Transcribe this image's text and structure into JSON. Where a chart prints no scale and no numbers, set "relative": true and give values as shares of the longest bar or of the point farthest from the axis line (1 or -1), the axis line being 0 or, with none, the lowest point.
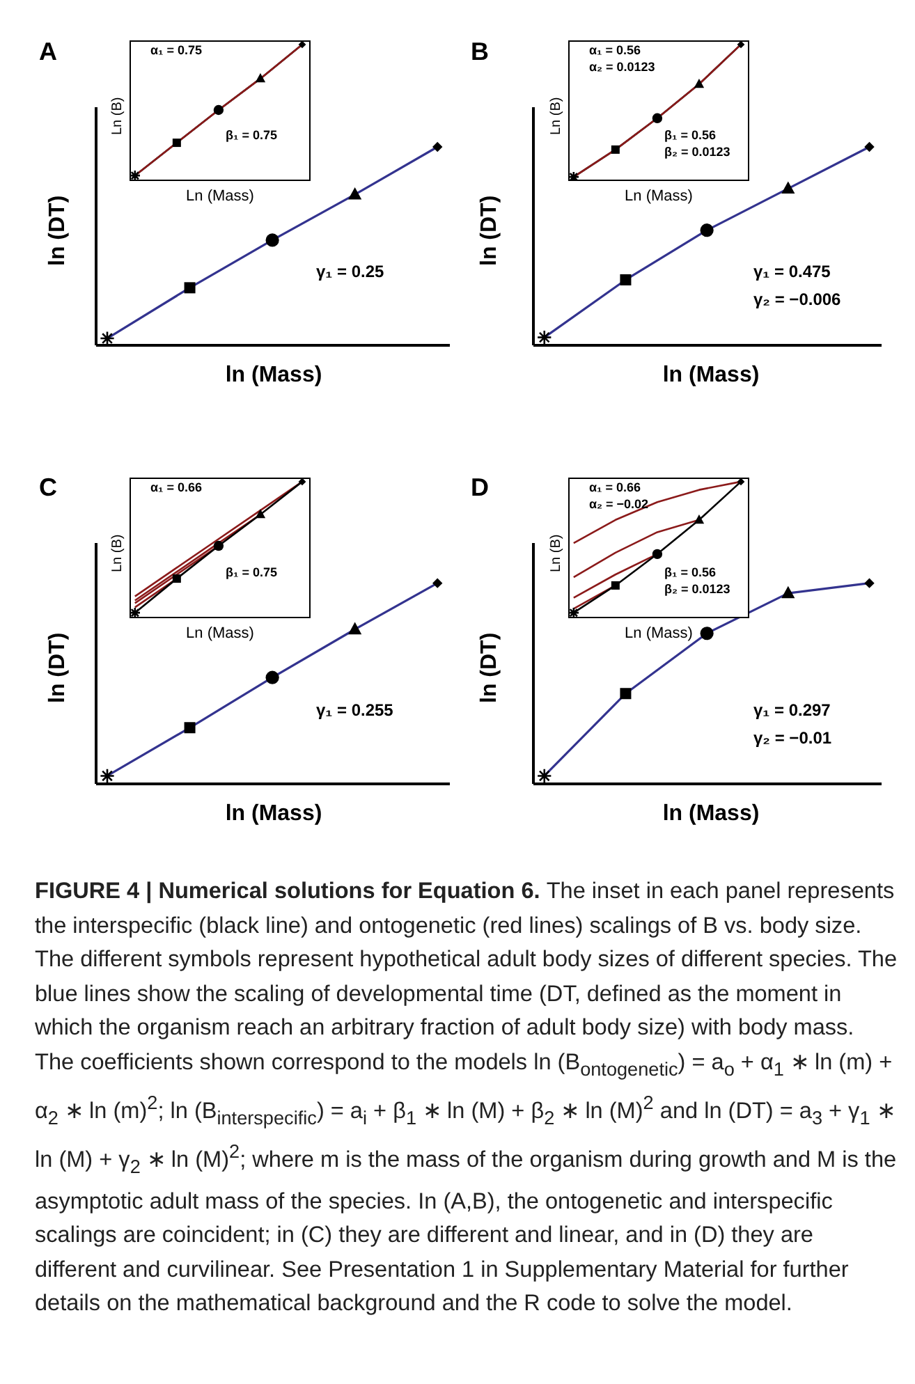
{
  "chart_data": [
    {
      "type": "line",
      "title": "A",
      "xlabel": "ln (Mass)",
      "ylabel": "ln (DT)",
      "categories": [
        null,
        null,
        null,
        null,
        null
      ],
      "relative": true,
      "series": [
        {
          "color": "#33338f",
          "marker": [
            "star",
            "square",
            "circle",
            "triangle",
            "diamond"
          ],
          "values": [
            0.035,
            0.29,
            0.53,
            0.76,
            1
          ]
        }
      ],
      "annotations": [
        "γ₁ = 0.25",
        "FIGURE 4 | Numerical solutions for Equation 6.",
        "The inset in each panel represents the interspecific (black line) and ontogenetic (red lines) scalings of B vs. body size. The different symbols represent hypothetical adult body sizes of different species. The blue lines show the scaling of developmental time (DT, defined as the moment in which the organism reach an arbitrary fraction of adult body size) with body mass. The coefficients shown correspond to the models ln (B$_{ontogenetic}$) = a$_{o}$ + α$_{1}$ ∗ ln (m) + α$_{2}$ ∗ ln (m)$^{2}$; ln (B$_{interspecific}$) = a$_{i}$ + β$_{1}$ ∗ ln (M) + β$_{2}$ ∗ ln (M)$^{2}$ and ln (DT) = a$_{3}$ + γ$_{1}$ ∗ ln (M) + γ$_{2}$ ∗ ln (M)$^{2}$; where m is the mass of the organism during growth and M is the asymptotic adult mass of the species. In (A,B), the ontogenetic and interspecific scalings are coincident; in (C) they are different and linear, and in (D) they are different and curvilinear. See Presentation 1 in Supplementary Material for further details on the mathematical background and the R code to solve the model."
      ]
    },
    {
      "type": "line",
      "xlabel": "Ln (Mass)",
      "ylabel": "Ln (B)",
      "categories": [
        null,
        null,
        null,
        null,
        null
      ],
      "relative": true,
      "series": [
        {
          "color": "#000000",
          "marker": [
            "star",
            "square",
            "circle",
            "triangle",
            "diamond"
          ],
          "values": [
            0.04,
            0.28,
            0.52,
            0.75,
            1
          ]
        },
        {
          "color": "#8b1a1a",
          "values": [
            0.04,
            0.28,
            0.52,
            0.75,
            1
          ]
        }
      ],
      "annotations": [
        "α₁ = 0.75",
        "β₁ = 0.75"
      ]
    },
    {
      "type": "line",
      "title": "B",
      "xlabel": "ln (Mass)",
      "ylabel": "ln (DT)",
      "categories": [
        null,
        null,
        null,
        null,
        null
      ],
      "relative": true,
      "series": [
        {
          "color": "#33338f",
          "marker": [
            "star",
            "square",
            "circle",
            "triangle",
            "diamond"
          ],
          "values": [
            0.04,
            0.33,
            0.58,
            0.79,
            1
          ]
        }
      ],
      "annotations": [
        "γ₁ = 0.475\nγ₂ = −0.006"
      ]
    },
    {
      "type": "line",
      "xlabel": "Ln (Mass)",
      "ylabel": "Ln (B)",
      "categories": [
        null,
        null,
        null,
        null,
        null
      ],
      "relative": true,
      "series": [
        {
          "color": "#000000",
          "marker": [
            "star",
            "square",
            "circle",
            "triangle",
            "diamond"
          ],
          "values": [
            0.03,
            0.23,
            0.46,
            0.71,
            1
          ]
        },
        {
          "color": "#8b1a1a",
          "values": [
            0.03,
            0.23,
            0.46,
            0.71,
            1
          ]
        }
      ],
      "annotations": [
        "α₁ = 0.56\nα₂ = 0.0123",
        "β₁ = 0.56\nβ₂ = 0.0123"
      ]
    },
    {
      "type": "line",
      "title": "C",
      "xlabel": "ln (Mass)",
      "ylabel": "ln (DT)",
      "categories": [
        null,
        null,
        null,
        null,
        null
      ],
      "relative": true,
      "series": [
        {
          "color": "#33338f",
          "marker": [
            "star",
            "square",
            "circle",
            "triangle",
            "diamond"
          ],
          "values": [
            0.04,
            0.28,
            0.53,
            0.77,
            1
          ]
        }
      ],
      "annotations": [
        "γ₁ = 0.255"
      ]
    },
    {
      "type": "line",
      "xlabel": "Ln (Mass)",
      "ylabel": "Ln (B)",
      "categories": [
        null,
        null,
        null,
        null,
        null
      ],
      "relative": true,
      "series": [
        {
          "color": "#8b1a1a",
          "values": [
            0.16,
            0.37,
            0.58,
            0.79,
            1
          ]
        },
        {
          "color": "#8b1a1a",
          "values": [
            0.13,
            0.34,
            0.55,
            0.76,
            null
          ]
        },
        {
          "color": "#8b1a1a",
          "values": [
            0.11,
            0.32,
            0.53,
            null,
            null
          ]
        },
        {
          "color": "#8b1a1a",
          "values": [
            0.08,
            0.29,
            null,
            null,
            null
          ]
        },
        {
          "color": "#000000",
          "marker": [
            "star",
            "square",
            "circle",
            "triangle",
            "diamond"
          ],
          "values": [
            0.04,
            0.29,
            0.53,
            0.76,
            1
          ]
        }
      ],
      "annotations": [
        "α₁ = 0.66",
        "β₁ = 0.75"
      ]
    },
    {
      "type": "line",
      "title": "D",
      "xlabel": "ln (Mass)",
      "ylabel": "ln (DT)",
      "categories": [
        null,
        null,
        null,
        null,
        null
      ],
      "relative": true,
      "series": [
        {
          "color": "#33338f",
          "marker": [
            "star",
            "square",
            "circle",
            "triangle",
            "diamond"
          ],
          "values": [
            0.04,
            0.45,
            0.75,
            0.95,
            1
          ]
        }
      ],
      "annotations": [
        "γ₁ = 0.297\nγ₂ = −0.01"
      ]
    },
    {
      "type": "line",
      "xlabel": "Ln (Mass)",
      "ylabel": "Ln (B)",
      "categories": [
        null,
        null,
        null,
        null,
        null
      ],
      "relative": true,
      "series": [
        {
          "color": "#8b1a1a",
          "values": [
            0.55,
            0.72,
            0.85,
            0.94,
            1
          ]
        },
        {
          "color": "#8b1a1a",
          "values": [
            0.3,
            0.48,
            0.63,
            0.72,
            null
          ]
        },
        {
          "color": "#8b1a1a",
          "values": [
            0.15,
            0.32,
            0.47,
            null,
            null
          ]
        },
        {
          "color": "#8b1a1a",
          "values": [
            0.07,
            0.24,
            null,
            null,
            null
          ]
        },
        {
          "color": "#000000",
          "marker": [
            "star",
            "square",
            "circle",
            "triangle",
            "diamond"
          ],
          "values": [
            0.04,
            0.24,
            0.47,
            0.72,
            1
          ]
        }
      ],
      "annotations": [
        "α₁ = 0.66\nα₂ = −0.02",
        "β₁ = 0.56\nβ₂ = 0.0123"
      ]
    }
  ]
}
